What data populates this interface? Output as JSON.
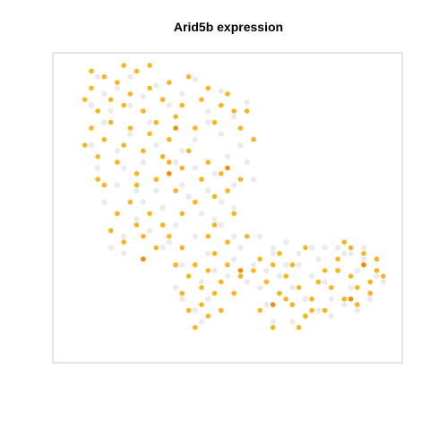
{
  "chart_data": {
    "type": "scatter",
    "title": "Arid5b expression",
    "xlabel": "",
    "ylabel": "",
    "xlim": [
      0,
      100
    ],
    "ylim": [
      0,
      100
    ],
    "grid": false,
    "legend": "none",
    "colors": {
      "background_cells": "#ebebeb",
      "expressing": "#f9b520",
      "high_expressing": "#f28c05",
      "frame": "#cccccc"
    },
    "series": [
      {
        "color_key": "background_cells",
        "points": [
          [
            10,
            96
          ],
          [
            16,
            92
          ],
          [
            20,
            96
          ],
          [
            24,
            89
          ],
          [
            28,
            93
          ],
          [
            32,
            86
          ],
          [
            36,
            90
          ],
          [
            40,
            95
          ],
          [
            44,
            84
          ],
          [
            48,
            91
          ],
          [
            52,
            82
          ],
          [
            56,
            87
          ],
          [
            48,
            76
          ],
          [
            44,
            80
          ],
          [
            54,
            72
          ],
          [
            50,
            68
          ],
          [
            46,
            62
          ],
          [
            52,
            58
          ],
          [
            48,
            52
          ],
          [
            42,
            48
          ],
          [
            38,
            54
          ],
          [
            34,
            44
          ],
          [
            30,
            50
          ],
          [
            26,
            42
          ],
          [
            22,
            46
          ],
          [
            18,
            40
          ],
          [
            14,
            36
          ],
          [
            12,
            52
          ],
          [
            10,
            64
          ],
          [
            8,
            72
          ],
          [
            12,
            80
          ],
          [
            16,
            70
          ],
          [
            20,
            76
          ],
          [
            24,
            66
          ],
          [
            28,
            72
          ],
          [
            32,
            62
          ],
          [
            36,
            70
          ],
          [
            40,
            64
          ],
          [
            30,
            36
          ],
          [
            24,
            32
          ],
          [
            18,
            34
          ],
          [
            36,
            30
          ],
          [
            42,
            24
          ],
          [
            44,
            34
          ],
          [
            46,
            28
          ],
          [
            50,
            26
          ],
          [
            52,
            32
          ],
          [
            40,
            14
          ],
          [
            44,
            18
          ],
          [
            36,
            18
          ],
          [
            42,
            10
          ],
          [
            34,
            22
          ],
          [
            56,
            24
          ],
          [
            58,
            30
          ],
          [
            60,
            22
          ],
          [
            62,
            28
          ],
          [
            64,
            34
          ],
          [
            66,
            26
          ],
          [
            68,
            30
          ],
          [
            70,
            22
          ],
          [
            72,
            30
          ],
          [
            74,
            18
          ],
          [
            76,
            26
          ],
          [
            78,
            32
          ],
          [
            80,
            24
          ],
          [
            82,
            18
          ],
          [
            84,
            28
          ],
          [
            86,
            34
          ],
          [
            88,
            22
          ],
          [
            90,
            28
          ],
          [
            92,
            32
          ],
          [
            94,
            20
          ],
          [
            96,
            26
          ],
          [
            98,
            24
          ],
          [
            62,
            16
          ],
          [
            64,
            10
          ],
          [
            66,
            20
          ],
          [
            70,
            10
          ],
          [
            74,
            12
          ],
          [
            78,
            14
          ],
          [
            82,
            12
          ],
          [
            86,
            16
          ],
          [
            90,
            14
          ],
          [
            94,
            18
          ],
          [
            60,
            40
          ],
          [
            64,
            36
          ],
          [
            68,
            38
          ],
          [
            72,
            34
          ],
          [
            76,
            36
          ],
          [
            80,
            36
          ],
          [
            84,
            36
          ],
          [
            88,
            34
          ],
          [
            92,
            36
          ],
          [
            40,
            74
          ],
          [
            36,
            58
          ],
          [
            26,
            80
          ],
          [
            22,
            56
          ],
          [
            16,
            58
          ],
          [
            44,
            56
          ],
          [
            48,
            44
          ],
          [
            52,
            40
          ],
          [
            30,
            88
          ],
          [
            20,
            86
          ],
          [
            14,
            84
          ],
          [
            24,
            52
          ],
          [
            32,
            38
          ],
          [
            54,
            36
          ],
          [
            40,
            40
          ],
          [
            34,
            66
          ],
          [
            56,
            66
          ],
          [
            58,
            60
          ],
          [
            52,
            50
          ],
          [
            46,
            46
          ],
          [
            28,
            56
          ],
          [
            18,
            64
          ],
          [
            8,
            86
          ],
          [
            12,
            90
          ]
        ]
      },
      {
        "color_key": "expressing",
        "points": [
          [
            6,
            88
          ],
          [
            8,
            92
          ],
          [
            10,
            84
          ],
          [
            12,
            96
          ],
          [
            14,
            88
          ],
          [
            16,
            94
          ],
          [
            18,
            86
          ],
          [
            20,
            90
          ],
          [
            22,
            98
          ],
          [
            24,
            84
          ],
          [
            26,
            92
          ],
          [
            28,
            80
          ],
          [
            30,
            88
          ],
          [
            32,
            94
          ],
          [
            34,
            82
          ],
          [
            36,
            86
          ],
          [
            38,
            96
          ],
          [
            40,
            78
          ],
          [
            42,
            88
          ],
          [
            44,
            92
          ],
          [
            46,
            80
          ],
          [
            48,
            86
          ],
          [
            50,
            90
          ],
          [
            52,
            84
          ],
          [
            54,
            78
          ],
          [
            56,
            84
          ],
          [
            58,
            74
          ],
          [
            6,
            72
          ],
          [
            8,
            78
          ],
          [
            10,
            68
          ],
          [
            12,
            74
          ],
          [
            14,
            80
          ],
          [
            16,
            66
          ],
          [
            18,
            72
          ],
          [
            20,
            78
          ],
          [
            22,
            62
          ],
          [
            24,
            70
          ],
          [
            26,
            76
          ],
          [
            28,
            60
          ],
          [
            30,
            68
          ],
          [
            32,
            74
          ],
          [
            34,
            56
          ],
          [
            36,
            64
          ],
          [
            38,
            70
          ],
          [
            40,
            52
          ],
          [
            42,
            60
          ],
          [
            44,
            66
          ],
          [
            46,
            54
          ],
          [
            48,
            62
          ],
          [
            50,
            56
          ],
          [
            52,
            48
          ],
          [
            54,
            60
          ],
          [
            14,
            42
          ],
          [
            16,
            48
          ],
          [
            18,
            38
          ],
          [
            20,
            52
          ],
          [
            22,
            44
          ],
          [
            24,
            40
          ],
          [
            26,
            48
          ],
          [
            28,
            36
          ],
          [
            30,
            44
          ],
          [
            32,
            40
          ],
          [
            34,
            30
          ],
          [
            36,
            36
          ],
          [
            38,
            26
          ],
          [
            40,
            30
          ],
          [
            42,
            22
          ],
          [
            44,
            28
          ],
          [
            46,
            34
          ],
          [
            48,
            24
          ],
          [
            50,
            30
          ],
          [
            52,
            20
          ],
          [
            54,
            26
          ],
          [
            38,
            14
          ],
          [
            40,
            8
          ],
          [
            42,
            16
          ],
          [
            44,
            12
          ],
          [
            46,
            20
          ],
          [
            48,
            14
          ],
          [
            36,
            20
          ],
          [
            58,
            28
          ],
          [
            60,
            32
          ],
          [
            62,
            24
          ],
          [
            64,
            30
          ],
          [
            66,
            20
          ],
          [
            68,
            26
          ],
          [
            70,
            16
          ],
          [
            72,
            22
          ],
          [
            74,
            12
          ],
          [
            76,
            18
          ],
          [
            78,
            24
          ],
          [
            80,
            14
          ],
          [
            82,
            22
          ],
          [
            84,
            28
          ],
          [
            86,
            18
          ],
          [
            88,
            26
          ],
          [
            90,
            22
          ],
          [
            92,
            30
          ],
          [
            94,
            24
          ],
          [
            96,
            28
          ],
          [
            98,
            26
          ],
          [
            88,
            36
          ],
          [
            92,
            34
          ],
          [
            96,
            32
          ],
          [
            86,
            38
          ],
          [
            60,
            14
          ],
          [
            64,
            8
          ],
          [
            68,
            18
          ],
          [
            72,
            8
          ],
          [
            76,
            14
          ],
          [
            80,
            28
          ],
          [
            84,
            32
          ],
          [
            90,
            16
          ],
          [
            94,
            20
          ],
          [
            66,
            34
          ],
          [
            70,
            30
          ],
          [
            74,
            36
          ],
          [
            10,
            60
          ],
          [
            12,
            58
          ],
          [
            22,
            58
          ],
          [
            46,
            44
          ],
          [
            50,
            38
          ],
          [
            56,
            40
          ],
          [
            8,
            98
          ],
          [
            18,
            100
          ],
          [
            26,
            100
          ],
          [
            32,
            66
          ],
          [
            36,
            48
          ],
          [
            44,
            40
          ]
        ]
      },
      {
        "color_key": "high_expressing",
        "points": [
          [
            24,
            32
          ],
          [
            32,
            62
          ],
          [
            50,
            64
          ],
          [
            34,
            78
          ],
          [
            54,
            28
          ],
          [
            64,
            16
          ],
          [
            88,
            18
          ],
          [
            92,
            30
          ]
        ]
      }
    ]
  }
}
